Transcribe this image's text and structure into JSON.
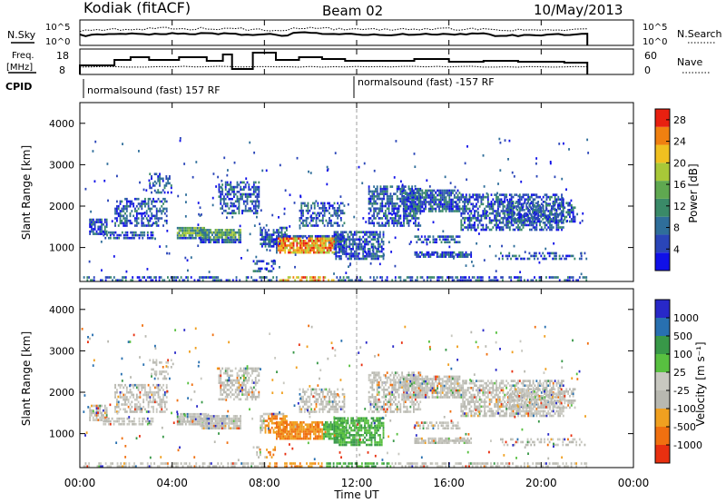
{
  "header": {
    "station": "Kodiak (fitACF)",
    "beam": "Beam 02",
    "date": "10/May/2013"
  },
  "summary_panels": {
    "nsky_label": "N.Sky",
    "nsearch_label": "N.Search",
    "freq_label_line1": "Freq.",
    "freq_label_line2": "[MHz]",
    "nave_label": "Nave",
    "cpid_label": "CPID",
    "noise_ticks": [
      "10^5",
      "10^0"
    ],
    "freq_ticks": [
      "18",
      "8"
    ],
    "nave_ticks": [
      "60",
      "0"
    ],
    "cpid_segments": [
      {
        "label": "normalsound (fast) 157 RF",
        "start": "00:00"
      },
      {
        "label": "normalsound (fast) -157 RF",
        "start": "12:00"
      }
    ]
  },
  "colors": {
    "power_scale": [
      "#1010e8",
      "#2a45b8",
      "#2f6e9a",
      "#3a8a68",
      "#5fa850",
      "#a8c838",
      "#f0c020",
      "#f08010",
      "#e82010"
    ],
    "velocity_scale": [
      "#2828c8",
      "#2870b0",
      "#389848",
      "#58c040",
      "#c8c8c0",
      "#b8b8b0",
      "#f0a020",
      "#f07010",
      "#e83010"
    ],
    "nsky": "#000000",
    "grid": "#666666"
  },
  "chart_data": [
    {
      "type": "heatmap",
      "panel": "power",
      "ylabel": "Slant Range [km]",
      "xlabel": "",
      "x_range": [
        "00:00",
        "24:00"
      ],
      "ylim": [
        180,
        4500
      ],
      "yticks": [
        1000,
        2000,
        3000,
        4000
      ],
      "colorbar": {
        "label": "Power [dB]",
        "ticks": [
          4,
          8,
          12,
          16,
          20,
          24,
          28
        ],
        "range": [
          0,
          30
        ]
      }
    },
    {
      "type": "heatmap",
      "panel": "velocity",
      "ylabel": "Slant Range [km]",
      "xlabel": "Time UT",
      "x_range": [
        "00:00",
        "24:00"
      ],
      "ylim": [
        180,
        4500
      ],
      "yticks": [
        1000,
        2000,
        3000,
        4000
      ],
      "xticks": [
        "00:00",
        "04:00",
        "08:00",
        "12:00",
        "16:00",
        "20:00",
        "00:00"
      ],
      "colorbar": {
        "label": "Velocity [m s⁻¹]",
        "ticks": [
          "-1000",
          "-500",
          "-100",
          "-25",
          "25",
          "100",
          "500",
          "1000"
        ]
      }
    }
  ]
}
